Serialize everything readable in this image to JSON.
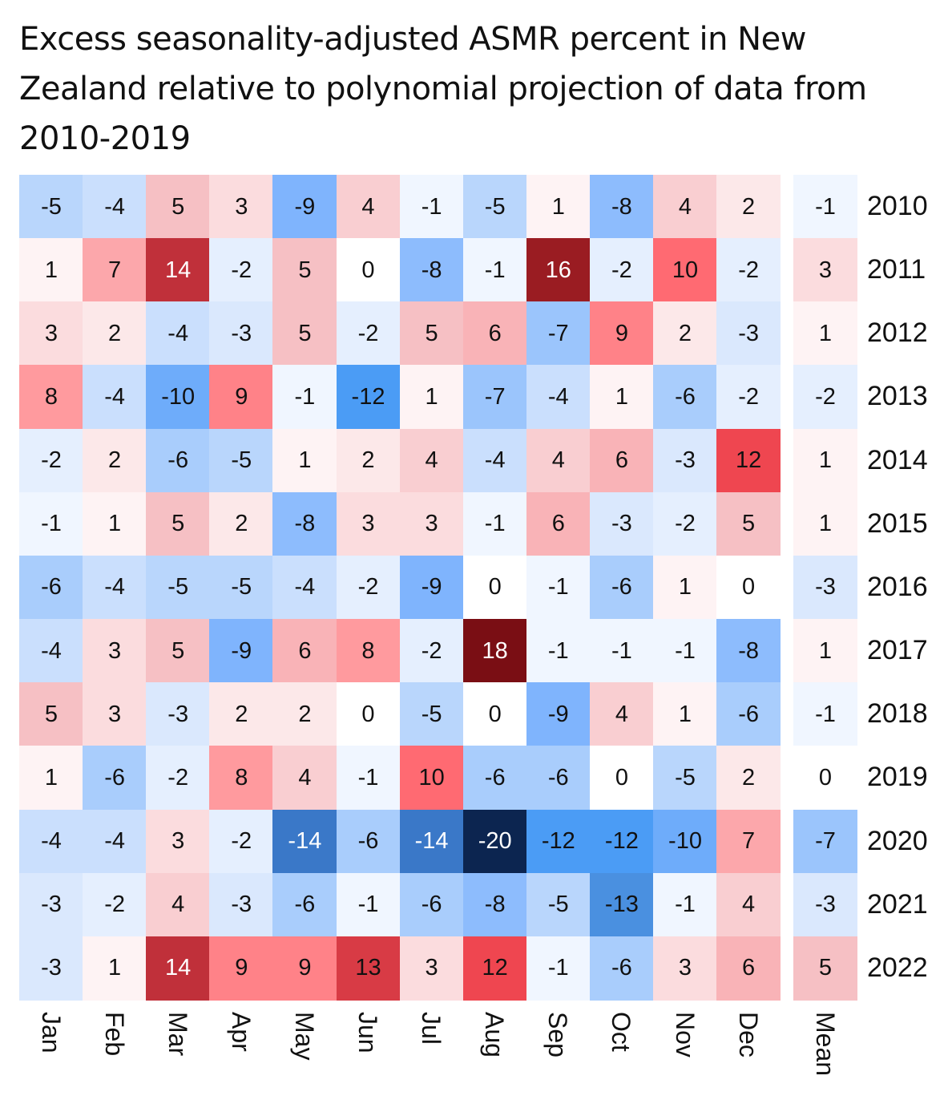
{
  "chart_data": {
    "type": "heatmap",
    "title": "Excess seasonality-adjusted ASMR percent in New Zealand relative to polynomial projection of data from 2010-2019",
    "columns": [
      "Jan",
      "Feb",
      "Mar",
      "Apr",
      "May",
      "Jun",
      "Jul",
      "Aug",
      "Sep",
      "Oct",
      "Nov",
      "Dec"
    ],
    "mean_label": "Mean",
    "rows": [
      "2010",
      "2011",
      "2012",
      "2013",
      "2014",
      "2015",
      "2016",
      "2017",
      "2018",
      "2019",
      "2020",
      "2021",
      "2022"
    ],
    "values": [
      [
        -5,
        -4,
        5,
        3,
        -9,
        4,
        -1,
        -5,
        1,
        -8,
        4,
        2
      ],
      [
        1,
        7,
        14,
        -2,
        5,
        0,
        -8,
        -1,
        16,
        -2,
        10,
        -2
      ],
      [
        3,
        2,
        -4,
        -3,
        5,
        -2,
        5,
        6,
        -7,
        9,
        2,
        -3
      ],
      [
        8,
        -4,
        -10,
        9,
        -1,
        -12,
        1,
        -7,
        -4,
        1,
        -6,
        -2
      ],
      [
        -2,
        2,
        -6,
        -5,
        1,
        2,
        4,
        -4,
        4,
        6,
        -3,
        12
      ],
      [
        -1,
        1,
        5,
        2,
        -8,
        3,
        3,
        -1,
        6,
        -3,
        -2,
        5
      ],
      [
        -6,
        -4,
        -5,
        -5,
        -4,
        -2,
        -9,
        0,
        -1,
        -6,
        1,
        0
      ],
      [
        -4,
        3,
        5,
        -9,
        6,
        8,
        -2,
        18,
        -1,
        -1,
        -1,
        -8
      ],
      [
        5,
        3,
        -3,
        2,
        2,
        0,
        -5,
        0,
        -9,
        4,
        1,
        -6
      ],
      [
        1,
        -6,
        -2,
        8,
        4,
        -1,
        10,
        -6,
        -6,
        0,
        -5,
        2
      ],
      [
        -4,
        -4,
        3,
        -2,
        -14,
        -6,
        -14,
        -20,
        -12,
        -12,
        -10,
        7
      ],
      [
        -3,
        -2,
        4,
        -3,
        -6,
        -1,
        -6,
        -8,
        -5,
        -13,
        -1,
        4
      ],
      [
        -3,
        1,
        14,
        9,
        9,
        13,
        3,
        12,
        -1,
        -6,
        3,
        6
      ]
    ],
    "mean": [
      -1,
      3,
      1,
      -2,
      1,
      1,
      -3,
      1,
      -1,
      0,
      -7,
      -3,
      5
    ],
    "colorscale": {
      "negative": "#0c2550",
      "zero": "#ffffff",
      "positive": "#7a0e14"
    }
  }
}
